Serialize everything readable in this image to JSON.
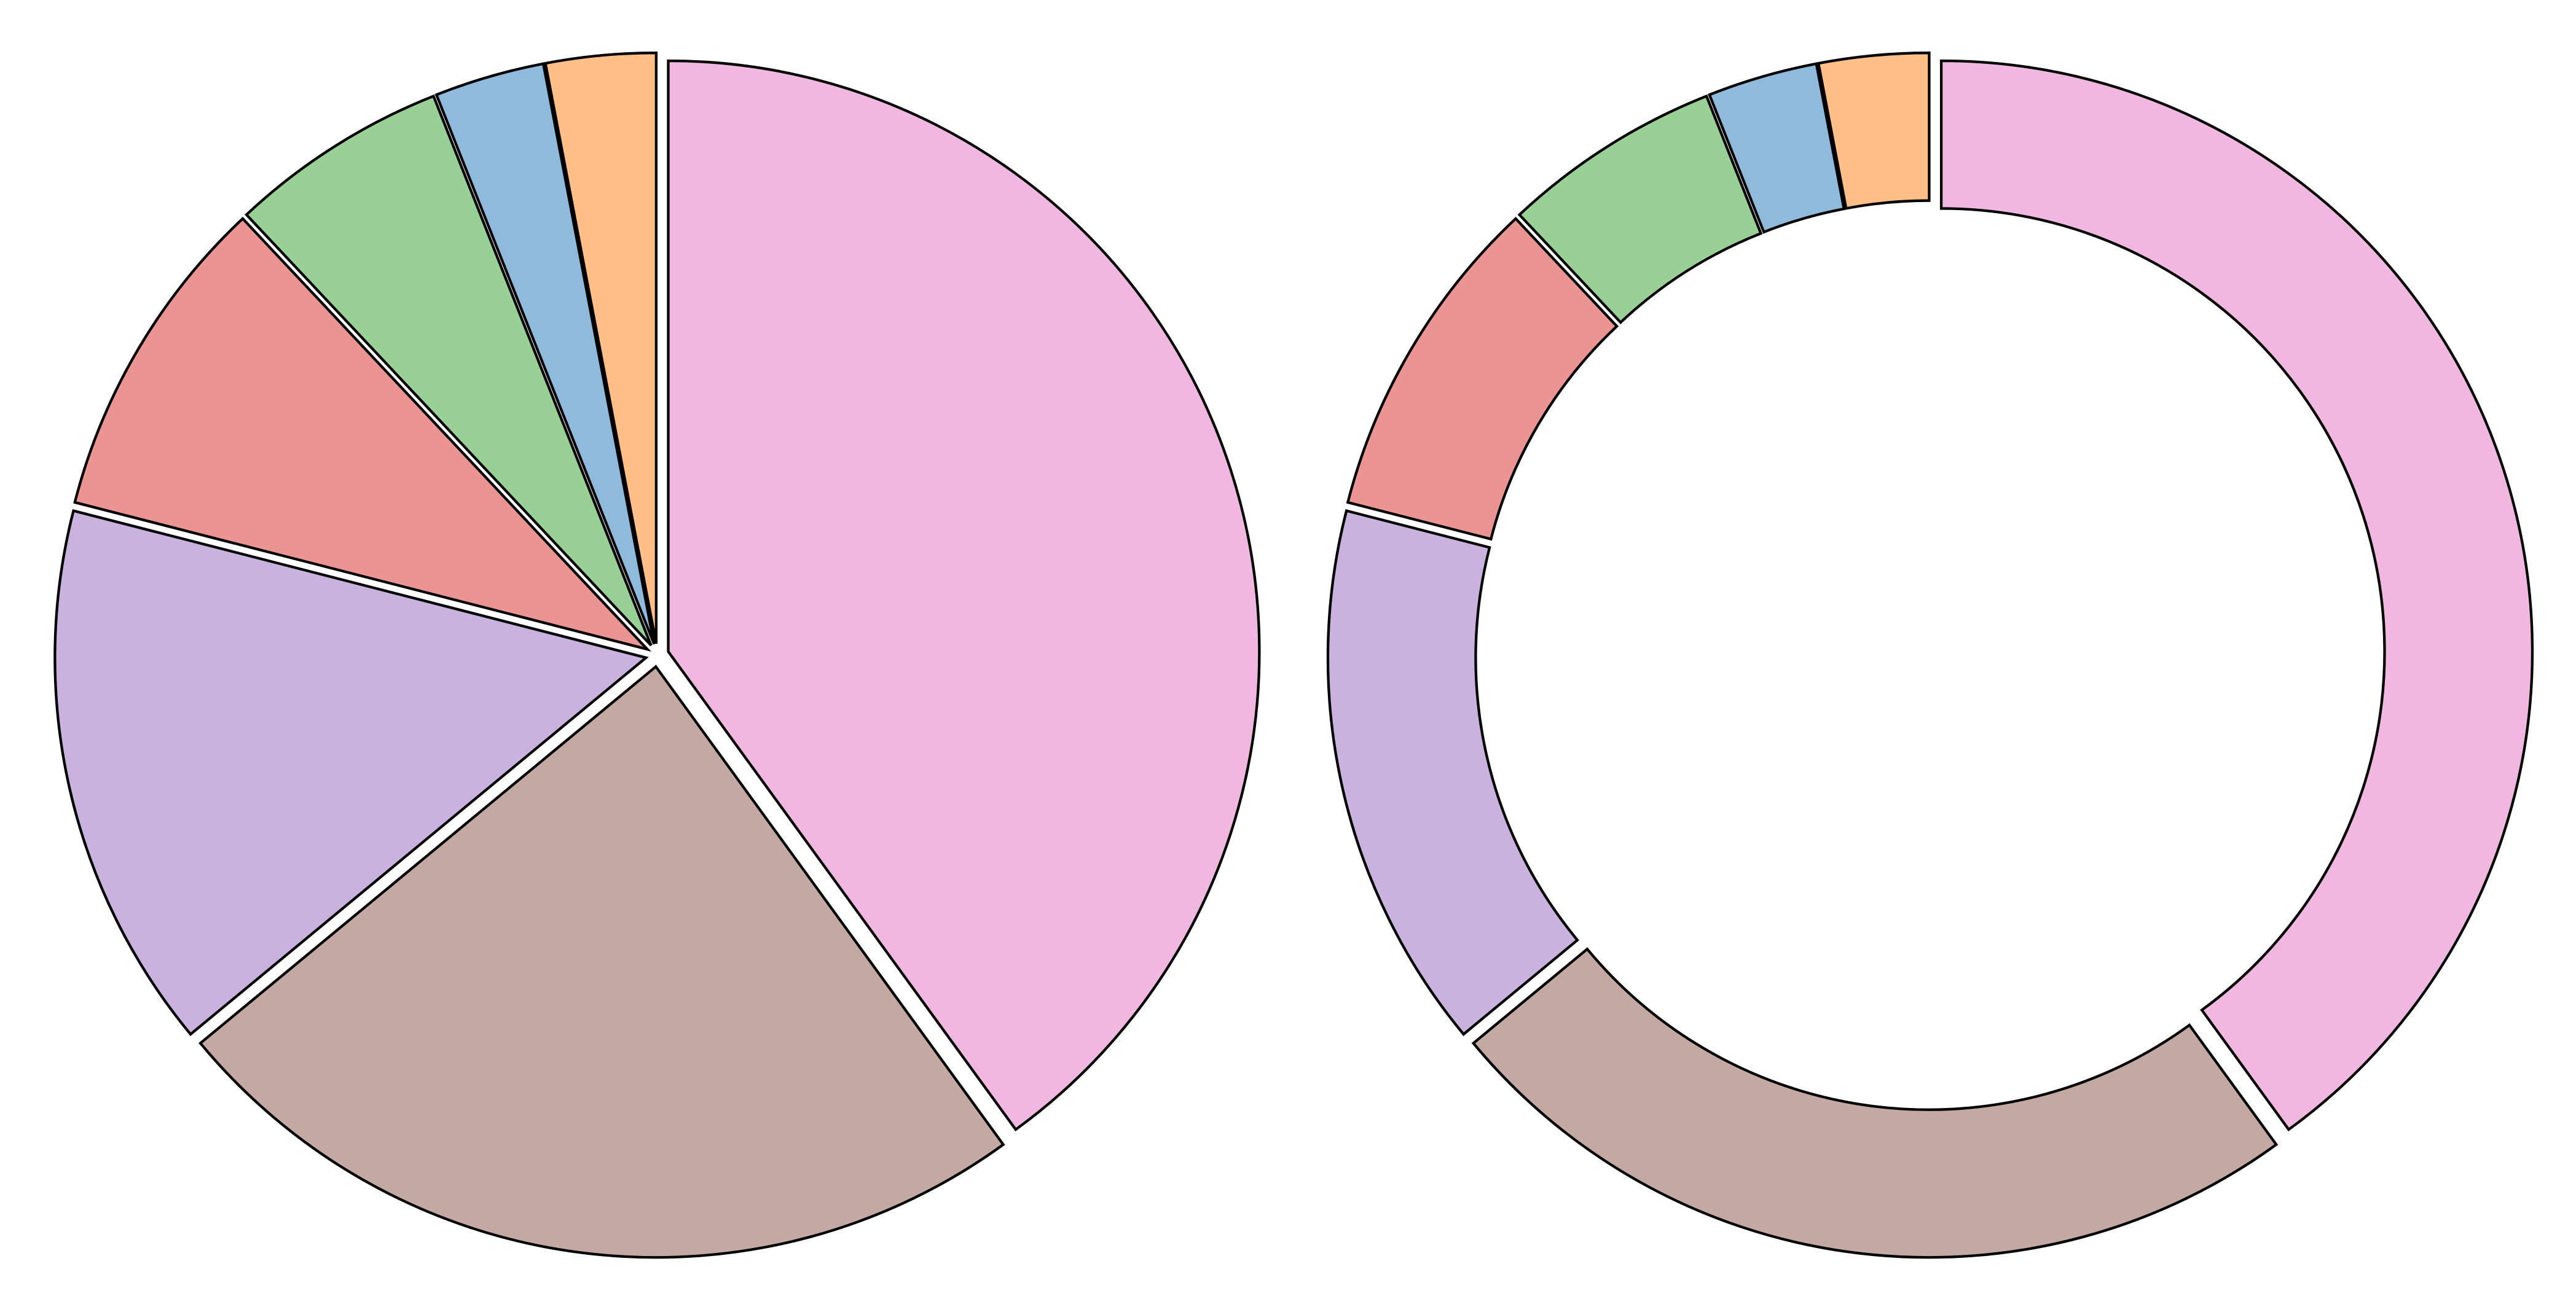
{
  "chart_data": [
    {
      "type": "pie",
      "values": [
        40,
        24,
        15,
        9,
        6,
        3,
        3
      ],
      "colors": [
        "#f0b8e0",
        "#c4a9a2",
        "#c9b2de",
        "#ea9494",
        "#98d096",
        "#8fbadb",
        "#ffbf87"
      ]
    },
    {
      "type": "donut",
      "values": [
        40,
        24,
        15,
        9,
        6,
        3,
        3
      ],
      "colors": [
        "#f0b8e0",
        "#c4a9a2",
        "#c9b2de",
        "#ea9494",
        "#98d096",
        "#8fbadb",
        "#ffbf87"
      ]
    }
  ]
}
